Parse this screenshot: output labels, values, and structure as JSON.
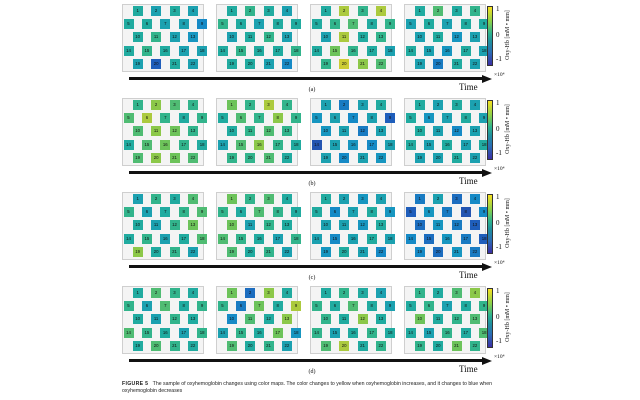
{
  "figure": {
    "label": "FIGURE 5",
    "caption": "The sample of oxyhemoglobin changes using color maps. The color changes to yellow when oxyhemoglobin increases, and it changes to blue when oxyhemoglobin decreases"
  },
  "axis": {
    "time_label": "Time"
  },
  "colorbar": {
    "label": "Oxy-Hb [mM • mm]",
    "ticks": [
      "1",
      "0",
      "-1"
    ],
    "multiplier": "×10⁴",
    "color_high": "#f7e120",
    "color_low": "#3b2fa6"
  },
  "panels": [
    {
      "label": "(a)",
      "maps": [
        [
          0.1,
          0.0,
          0.1,
          0.0,
          0.1,
          0.1,
          0.0,
          0.0,
          -0.2,
          0.1,
          0.2,
          0.0,
          -0.1,
          0.1,
          0.2,
          0.1,
          0.0,
          0.0,
          0.0,
          -0.5,
          0.1,
          0.0
        ],
        [
          0.1,
          0.2,
          0.1,
          0.0,
          0.2,
          0.1,
          0.0,
          0.1,
          0.1,
          0.0,
          0.1,
          0.2,
          0.0,
          0.1,
          0.2,
          0.1,
          0.1,
          0.2,
          0.1,
          0.1,
          0.0,
          -0.2
        ],
        [
          0.1,
          0.6,
          0.2,
          0.6,
          0.1,
          0.2,
          0.3,
          0.1,
          0.2,
          0.0,
          0.6,
          0.1,
          0.2,
          0.1,
          0.4,
          0.2,
          0.1,
          0.0,
          0.2,
          0.7,
          0.5,
          0.3
        ],
        [
          0.1,
          0.3,
          0.1,
          0.2,
          0.0,
          0.1,
          0.0,
          0.1,
          0.1,
          0.0,
          0.1,
          -0.1,
          0.0,
          0.1,
          0.0,
          -0.1,
          0.1,
          0.0,
          0.0,
          -0.3,
          0.1,
          0.0
        ]
      ]
    },
    {
      "label": "(b)",
      "maps": [
        [
          0.2,
          0.5,
          0.3,
          0.2,
          0.3,
          0.6,
          0.2,
          0.1,
          0.2,
          0.3,
          0.5,
          0.4,
          0.2,
          0.1,
          0.3,
          0.4,
          0.2,
          0.1,
          0.3,
          0.5,
          0.4,
          0.3
        ],
        [
          0.4,
          0.2,
          0.6,
          0.2,
          0.1,
          0.3,
          0.2,
          0.5,
          0.2,
          0.1,
          0.2,
          0.3,
          0.2,
          0.0,
          0.3,
          0.5,
          0.2,
          0.1,
          0.2,
          0.2,
          0.3,
          0.1
        ],
        [
          0.0,
          -0.3,
          0.0,
          0.1,
          -0.1,
          0.0,
          -0.2,
          0.0,
          -0.5,
          -0.1,
          0.0,
          -0.3,
          0.0,
          -0.6,
          0.0,
          -0.1,
          -0.2,
          0.0,
          0.0,
          -0.2,
          0.0,
          -0.1
        ],
        [
          0.1,
          0.0,
          0.1,
          0.0,
          0.1,
          -0.1,
          0.0,
          0.1,
          0.0,
          0.1,
          0.0,
          -0.2,
          0.0,
          0.1,
          0.0,
          0.1,
          0.0,
          0.1,
          0.0,
          0.0,
          0.1,
          0.0
        ]
      ]
    },
    {
      "label": "(c)",
      "maps": [
        [
          0.0,
          0.2,
          0.1,
          0.3,
          0.2,
          0.0,
          0.1,
          0.2,
          0.3,
          0.1,
          0.0,
          0.2,
          0.4,
          0.1,
          0.2,
          0.0,
          0.1,
          0.3,
          0.5,
          0.1,
          0.2,
          0.0
        ],
        [
          0.4,
          0.2,
          0.3,
          0.1,
          0.2,
          0.1,
          0.3,
          0.2,
          0.1,
          0.4,
          0.0,
          0.2,
          0.1,
          0.3,
          0.2,
          0.1,
          0.0,
          0.2,
          0.3,
          0.1,
          0.2,
          0.0
        ],
        [
          0.1,
          0.0,
          -0.1,
          0.0,
          0.1,
          -0.2,
          0.0,
          0.1,
          -0.1,
          0.0,
          0.0,
          -0.1,
          0.1,
          0.0,
          -0.2,
          0.0,
          0.1,
          0.0,
          -0.1,
          0.1,
          0.0,
          -0.2
        ],
        [
          -0.3,
          0.0,
          -0.4,
          -0.2,
          -0.5,
          -0.1,
          -0.3,
          -0.6,
          -0.2,
          -0.4,
          -0.1,
          -0.3,
          -0.5,
          -0.2,
          -0.4,
          -0.1,
          -0.3,
          -0.5,
          -0.2,
          -0.4,
          -0.1,
          -0.3
        ]
      ]
    },
    {
      "label": "(d)",
      "maps": [
        [
          0.1,
          0.3,
          0.2,
          0.1,
          0.2,
          0.0,
          0.3,
          0.1,
          0.2,
          0.1,
          0.0,
          0.2,
          0.1,
          0.3,
          0.2,
          0.1,
          0.0,
          0.2,
          0.1,
          0.3,
          0.2,
          0.1
        ],
        [
          0.4,
          -0.4,
          0.5,
          0.1,
          0.2,
          -0.3,
          0.4,
          0.1,
          0.6,
          -0.2,
          0.3,
          0.1,
          0.5,
          0.0,
          0.2,
          0.1,
          0.4,
          -0.1,
          0.3,
          0.1,
          0.2,
          0.0
        ],
        [
          0.1,
          0.2,
          0.1,
          0.0,
          0.2,
          0.1,
          0.3,
          0.1,
          0.0,
          0.2,
          0.1,
          0.5,
          0.1,
          0.2,
          0.0,
          0.1,
          0.2,
          0.1,
          0.3,
          0.6,
          0.1,
          0.2
        ],
        [
          0.2,
          0.1,
          0.3,
          0.5,
          0.1,
          0.2,
          0.0,
          0.1,
          0.2,
          0.4,
          0.1,
          0.2,
          0.3,
          0.1,
          0.0,
          0.2,
          0.1,
          0.3,
          0.2,
          0.1,
          0.4,
          0.2
        ]
      ]
    }
  ]
}
